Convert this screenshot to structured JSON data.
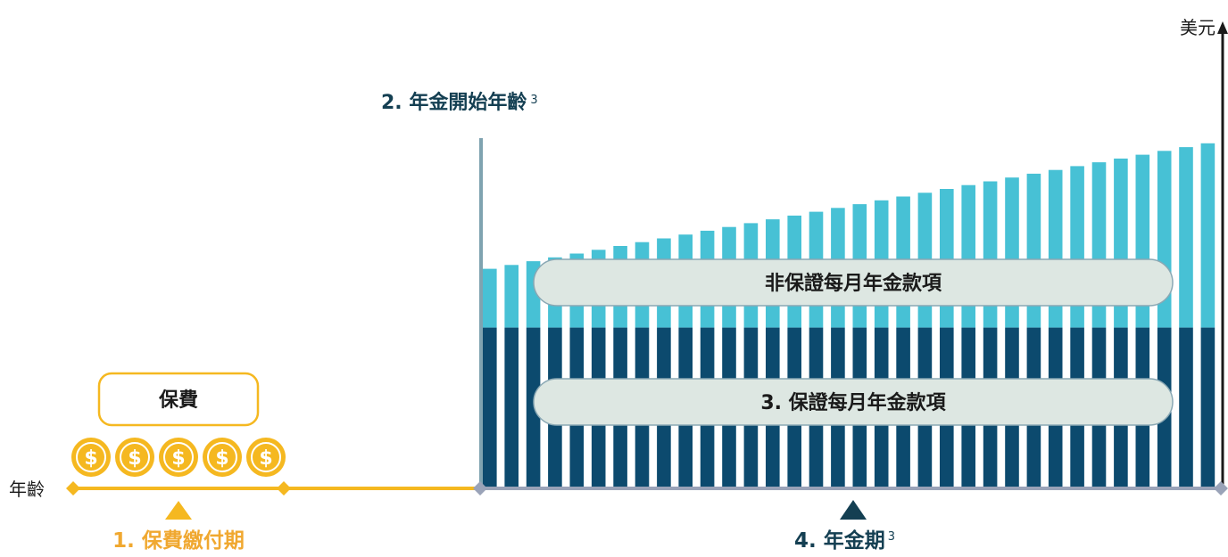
{
  "labels": {
    "y_axis_unit": "美元",
    "x_axis_unit": "年齡",
    "annuity_start_age": "2. 年金開始年齡",
    "annuity_start_sup": "3",
    "non_guaranteed_payments": "非保證每月年金款項",
    "guaranteed_payments": "3. 保證每月年金款項",
    "premium_box": "保費",
    "premium_payment_period": "1. 保費繳付期",
    "annuity_period": "4. 年金期",
    "annuity_period_sup": "3",
    "coin_symbol": "$"
  },
  "coins": {
    "count": 5
  },
  "chart_data": {
    "type": "bar",
    "bar_count": 34,
    "series": [
      {
        "role": "guaranteed",
        "relative_level": 0.41,
        "trend": "constant"
      },
      {
        "role": "non-guaranteed",
        "relative_level_start": 0.56,
        "relative_level_end": 0.88,
        "trend": "increasing"
      }
    ]
  },
  "colors": {
    "premium_gold": "#f5b820",
    "premium_text": "#f0a830",
    "guaranteed_navy": "#0c4a6e",
    "non_guaranteed_cyan": "#47c1d5",
    "dark_text": "#143f52",
    "timeline_gray": "#9aa3b8",
    "start_line": "#7fa3b0",
    "pill_fill": "#dde7e2",
    "axis": "#1a1a1a",
    "annuity_marker": "#143f52"
  }
}
